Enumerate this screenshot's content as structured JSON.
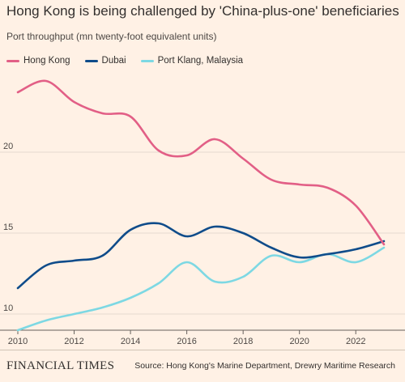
{
  "header": {
    "title": "Hong Kong is being challenged by 'China-plus-one' beneficiaries",
    "subtitle": "Port throughput (mn twenty-foot equivalent units)"
  },
  "footer": {
    "brand": "FINANCIAL TIMES",
    "source": "Source: Hong Kong's Marine Department, Drewry Maritime Research"
  },
  "chart_data": {
    "type": "line",
    "title": "Hong Kong is being challenged by 'China-plus-one' beneficiaries",
    "subtitle": "Port throughput (mn twenty-foot equivalent units)",
    "xlabel": "",
    "ylabel": "",
    "xlim": [
      2010,
      2023
    ],
    "ylim": [
      9,
      24.5
    ],
    "xticks": [
      2010,
      2012,
      2014,
      2016,
      2018,
      2020,
      2022
    ],
    "yticks": [
      10,
      15,
      20
    ],
    "grid": "horizontal",
    "legend_position": "top-left",
    "x": [
      2010,
      2011,
      2012,
      2013,
      2014,
      2015,
      2016,
      2017,
      2018,
      2019,
      2020,
      2021,
      2022,
      2023
    ],
    "series": [
      {
        "name": "Hong Kong",
        "color": "#e25f86",
        "values": [
          23.7,
          24.4,
          23.1,
          22.4,
          22.2,
          20.1,
          19.8,
          20.8,
          19.6,
          18.3,
          18.0,
          17.8,
          16.7,
          14.3
        ]
      },
      {
        "name": "Dubai",
        "color": "#0f4c8a",
        "values": [
          11.6,
          13.0,
          13.3,
          13.6,
          15.2,
          15.6,
          14.8,
          15.4,
          15.0,
          14.1,
          13.5,
          13.7,
          14.0,
          14.5
        ]
      },
      {
        "name": "Port Klang, Malaysia",
        "color": "#7dd8e3",
        "values": [
          9.0,
          9.6,
          10.0,
          10.4,
          11.0,
          11.9,
          13.2,
          12.0,
          12.3,
          13.6,
          13.2,
          13.7,
          13.2,
          14.1
        ]
      }
    ]
  }
}
